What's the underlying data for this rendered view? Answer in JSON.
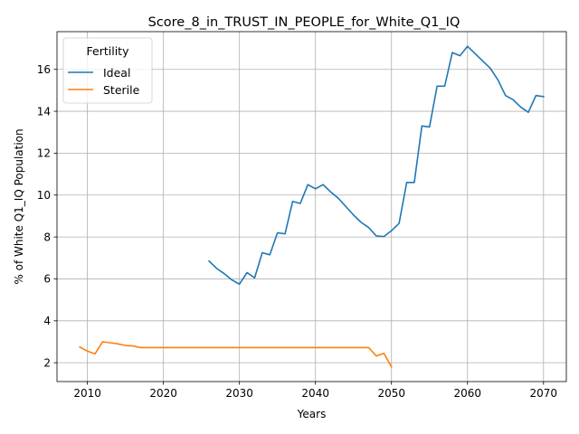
{
  "chart_data": {
    "type": "line",
    "title": "Score_8_in_TRUST_IN_PEOPLE_for_White_Q1_IQ",
    "xlabel": "Years",
    "ylabel": "% of White Q1_IQ Population",
    "xlim": [
      2006,
      2073
    ],
    "ylim": [
      1.1,
      17.8
    ],
    "xticks": [
      2010,
      2020,
      2030,
      2040,
      2050,
      2060,
      2070
    ],
    "yticks": [
      2,
      4,
      6,
      8,
      10,
      12,
      14,
      16
    ],
    "grid": true,
    "legend": {
      "title": "Fertility",
      "placement": "top-left"
    },
    "series": [
      {
        "name": "Ideal",
        "color": "#1f77b4",
        "x": [
          2026,
          2027,
          2028,
          2029,
          2030,
          2031,
          2032,
          2033,
          2034,
          2035,
          2036,
          2037,
          2038,
          2039,
          2040,
          2041,
          2042,
          2043,
          2044,
          2045,
          2046,
          2047,
          2048,
          2049,
          2050,
          2051,
          2052,
          2053,
          2054,
          2055,
          2056,
          2057,
          2058,
          2059,
          2060,
          2061,
          2062,
          2063,
          2064,
          2065,
          2066,
          2067,
          2068,
          2069,
          2070
        ],
        "y": [
          6.85,
          6.5,
          6.25,
          5.95,
          5.75,
          6.3,
          6.05,
          7.25,
          7.15,
          8.2,
          8.15,
          9.7,
          9.6,
          10.5,
          10.3,
          10.5,
          10.15,
          9.85,
          9.45,
          9.05,
          8.7,
          8.45,
          8.05,
          8.02,
          8.3,
          8.65,
          10.6,
          10.6,
          13.3,
          13.25,
          15.2,
          15.2,
          16.8,
          16.65,
          17.1,
          16.75,
          16.4,
          16.05,
          15.5,
          14.75,
          14.55,
          14.2,
          13.95,
          14.75,
          14.7
        ]
      },
      {
        "name": "Sterile",
        "color": "#ff7f0e",
        "x": [
          2009,
          2010,
          2011,
          2012,
          2013,
          2014,
          2015,
          2016,
          2017,
          2018,
          2019,
          2020,
          2021,
          2022,
          2023,
          2024,
          2025,
          2026,
          2027,
          2028,
          2029,
          2030,
          2031,
          2032,
          2033,
          2034,
          2035,
          2036,
          2037,
          2038,
          2039,
          2040,
          2041,
          2042,
          2043,
          2044,
          2045,
          2046,
          2047,
          2048,
          2049,
          2050
        ],
        "y": [
          2.75,
          2.55,
          2.42,
          3.0,
          2.95,
          2.9,
          2.82,
          2.8,
          2.72,
          2.72,
          2.72,
          2.72,
          2.72,
          2.72,
          2.72,
          2.72,
          2.72,
          2.72,
          2.72,
          2.72,
          2.72,
          2.72,
          2.72,
          2.72,
          2.72,
          2.72,
          2.72,
          2.72,
          2.72,
          2.72,
          2.72,
          2.72,
          2.72,
          2.72,
          2.72,
          2.72,
          2.72,
          2.72,
          2.72,
          2.32,
          2.45,
          1.8
        ]
      }
    ]
  }
}
